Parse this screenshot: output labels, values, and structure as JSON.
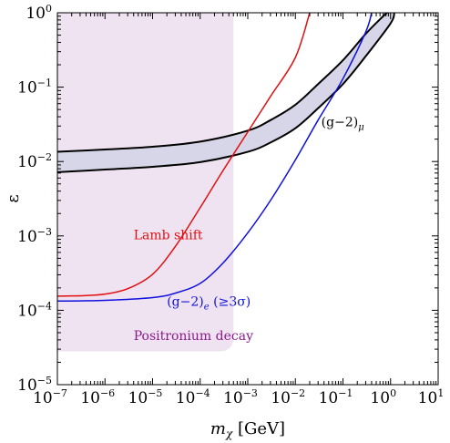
{
  "chart_data": {
    "type": "line",
    "title": "",
    "xlabel": {
      "symbol": "m",
      "subscript": "χ",
      "unit": "[GeV]"
    },
    "ylabel": "ε",
    "x_scale": "log",
    "y_scale": "log",
    "xlim": [
      1e-07,
      10
    ],
    "ylim": [
      1e-05,
      1
    ],
    "x_ticks": [
      {
        "value": 1e-07,
        "base": "10",
        "exp": "−7"
      },
      {
        "value": 1e-06,
        "base": "10",
        "exp": "−6"
      },
      {
        "value": 1e-05,
        "base": "10",
        "exp": "−5"
      },
      {
        "value": 0.0001,
        "base": "10",
        "exp": "−4"
      },
      {
        "value": 0.001,
        "base": "10",
        "exp": "−3"
      },
      {
        "value": 0.01,
        "base": "10",
        "exp": "−2"
      },
      {
        "value": 0.1,
        "base": "10",
        "exp": "−1"
      },
      {
        "value": 1,
        "base": "10",
        "exp": "0"
      },
      {
        "value": 10,
        "base": "10",
        "exp": "1"
      }
    ],
    "y_ticks": [
      {
        "value": 1e-05,
        "base": "10",
        "exp": "−5"
      },
      {
        "value": 0.0001,
        "base": "10",
        "exp": "−4"
      },
      {
        "value": 0.001,
        "base": "10",
        "exp": "−3"
      },
      {
        "value": 0.01,
        "base": "10",
        "exp": "−2"
      },
      {
        "value": 0.1,
        "base": "10",
        "exp": "−1"
      },
      {
        "value": 1,
        "base": "10",
        "exp": "0"
      }
    ],
    "grid": false,
    "series": [
      {
        "name": "Positronium decay",
        "kind": "region",
        "color": "#f0e3f1",
        "label_color": "#8b1a8b",
        "x_range": [
          1e-07,
          0.0005
        ],
        "y_range": [
          2.8e-05,
          1
        ],
        "points": [
          [
            1e-07,
            2.8e-05
          ],
          [
            0.0005,
            2.8e-05
          ],
          [
            0.0005,
            1
          ],
          [
            1e-07,
            1
          ]
        ]
      },
      {
        "name": "(g−2)_μ",
        "kind": "band",
        "fill": "#d6d6e8",
        "stroke": "#000000",
        "label_color": "#000000",
        "upper": [
          [
            1e-07,
            0.0135
          ],
          [
            1e-06,
            0.0145
          ],
          [
            1e-05,
            0.0158
          ],
          [
            0.0001,
            0.0185
          ],
          [
            0.001,
            0.026
          ],
          [
            0.003,
            0.036
          ],
          [
            0.01,
            0.058
          ],
          [
            0.03,
            0.11
          ],
          [
            0.1,
            0.23
          ],
          [
            0.3,
            0.52
          ],
          [
            0.7,
            0.9
          ],
          [
            0.85,
            1.0
          ]
        ],
        "lower": [
          [
            1e-07,
            0.0072
          ],
          [
            1e-06,
            0.0078
          ],
          [
            1e-05,
            0.0085
          ],
          [
            0.0001,
            0.0098
          ],
          [
            0.001,
            0.0135
          ],
          [
            0.003,
            0.018
          ],
          [
            0.01,
            0.028
          ],
          [
            0.03,
            0.052
          ],
          [
            0.1,
            0.11
          ],
          [
            0.3,
            0.26
          ],
          [
            1,
            0.72
          ],
          [
            1.2,
            1.0
          ]
        ]
      },
      {
        "name": "Lamb shift",
        "kind": "line",
        "color": "#e01010",
        "points": [
          [
            1e-07,
            0.000155
          ],
          [
            2e-07,
            0.000156
          ],
          [
            4e-07,
            0.000158
          ],
          [
            1e-06,
            0.000165
          ],
          [
            3e-06,
            0.000195
          ],
          [
            1e-05,
            0.000305
          ],
          [
            3e-05,
            0.00072
          ],
          [
            0.0001,
            0.0024
          ],
          [
            0.0003,
            0.0075
          ],
          [
            0.001,
            0.025
          ],
          [
            0.003,
            0.075
          ],
          [
            0.01,
            0.25
          ],
          [
            0.02,
            1.0
          ]
        ]
      },
      {
        "name": "(g−2)_e (≥3σ)",
        "kind": "line",
        "color": "#1010e0",
        "points": [
          [
            1e-07,
            0.000133
          ],
          [
            1e-06,
            0.000136
          ],
          [
            1e-05,
            0.000148
          ],
          [
            3e-05,
            0.00017
          ],
          [
            0.0001,
            0.00023
          ],
          [
            0.0003,
            0.00043
          ],
          [
            0.001,
            0.0011
          ],
          [
            0.003,
            0.003
          ],
          [
            0.01,
            0.0105
          ],
          [
            0.03,
            0.036
          ],
          [
            0.1,
            0.13
          ],
          [
            0.3,
            0.55
          ],
          [
            0.4,
            1.0
          ]
        ]
      }
    ],
    "annotations": [
      {
        "text": "Lamb shift",
        "x": 4e-06,
        "y": 0.0009,
        "color": "#e01010"
      },
      {
        "text": "(g−2)",
        "sub": "e",
        "tail": " (≥3σ)",
        "x": 2e-05,
        "y": 0.000115,
        "color": "#1010e0"
      },
      {
        "text": "Positronium decay",
        "x": 4e-06,
        "y": 4e-05,
        "color": "#8b1a8b"
      },
      {
        "text": "(g−2)",
        "sub": "μ",
        "tail": "",
        "x": 0.035,
        "y": 0.03,
        "color": "#000000"
      }
    ]
  }
}
